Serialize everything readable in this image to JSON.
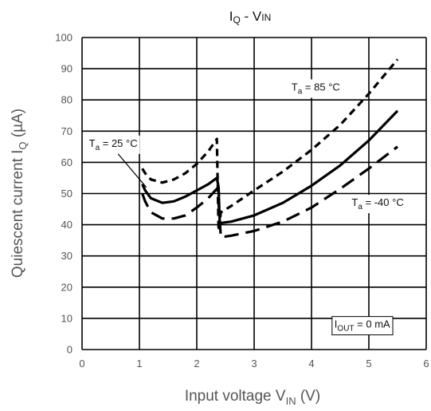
{
  "chart_data": {
    "type": "line",
    "title": {
      "main": "I",
      "main_sub": "Q",
      "sep": " - V",
      "sep_sub": "IN"
    },
    "xlabel": {
      "main": "Input voltage   V",
      "sub": "IN",
      "tail": "  (V)"
    },
    "ylabel": {
      "main": "Quiescent  current  I",
      "sub": "Q",
      "tail": "  (µA)"
    },
    "xlim": [
      0,
      6
    ],
    "ylim": [
      0,
      100
    ],
    "xticks": [
      "0",
      "1",
      "2",
      "3",
      "4",
      "5",
      "6"
    ],
    "yticks": [
      "0",
      "10",
      "20",
      "30",
      "40",
      "50",
      "60",
      "70",
      "80",
      "90",
      "100"
    ],
    "grid": true,
    "series": [
      {
        "name": "Ta = 85 °C",
        "style": "short-dash",
        "x": [
          1.05,
          1.1,
          1.2,
          1.4,
          1.6,
          1.8,
          2.0,
          2.2,
          2.35,
          2.38,
          2.42,
          2.6,
          2.8,
          3.0,
          3.5,
          4.0,
          4.5,
          5.0,
          5.5
        ],
        "y": [
          58,
          56.5,
          54.5,
          53.5,
          54.5,
          56.5,
          59.5,
          63.5,
          67.5,
          38,
          44,
          46,
          48.5,
          51,
          57,
          64,
          72,
          82,
          93
        ]
      },
      {
        "name": "Ta = 25 °C",
        "style": "solid",
        "x": [
          1.05,
          1.1,
          1.2,
          1.4,
          1.6,
          1.8,
          2.0,
          2.2,
          2.35,
          2.38,
          2.4,
          2.6,
          3.0,
          3.5,
          4.0,
          4.5,
          5.0,
          5.5
        ],
        "y": [
          53,
          51,
          48.5,
          47,
          47.5,
          49,
          51,
          53,
          55,
          52,
          40.5,
          41,
          43,
          47,
          52.5,
          59,
          67,
          76.5
        ]
      },
      {
        "name": "Ta = -40 °C",
        "style": "long-dash",
        "x": [
          1.05,
          1.1,
          1.2,
          1.4,
          1.6,
          1.8,
          2.0,
          2.2,
          2.35,
          2.38,
          2.42,
          2.6,
          3.0,
          3.5,
          4.0,
          4.5,
          5.0,
          5.5
        ],
        "y": [
          50,
          47.5,
          44,
          42,
          42,
          43,
          45.5,
          48.5,
          51.5,
          47,
          36,
          36.5,
          38,
          41,
          45.5,
          51.5,
          58,
          65
        ]
      }
    ],
    "annotations": [
      {
        "label": "T",
        "sub": "a",
        "rest": " = 85 °C",
        "series": 0,
        "at_x": 3.65,
        "at_y": 83
      },
      {
        "label": "T",
        "sub": "a",
        "rest": " = 25 °C",
        "series": 1,
        "at_x": 0.12,
        "at_y": 65,
        "leader_to": [
          1.12,
          52
        ]
      },
      {
        "label": "T",
        "sub": "a",
        "rest": " = -40 °C",
        "series": 2,
        "at_x": 4.7,
        "at_y": 46
      },
      {
        "label": "I",
        "sub": "OUT",
        "rest": " = 0 mA",
        "boxed": true,
        "at_x": 4.4,
        "at_y": 7
      }
    ]
  }
}
